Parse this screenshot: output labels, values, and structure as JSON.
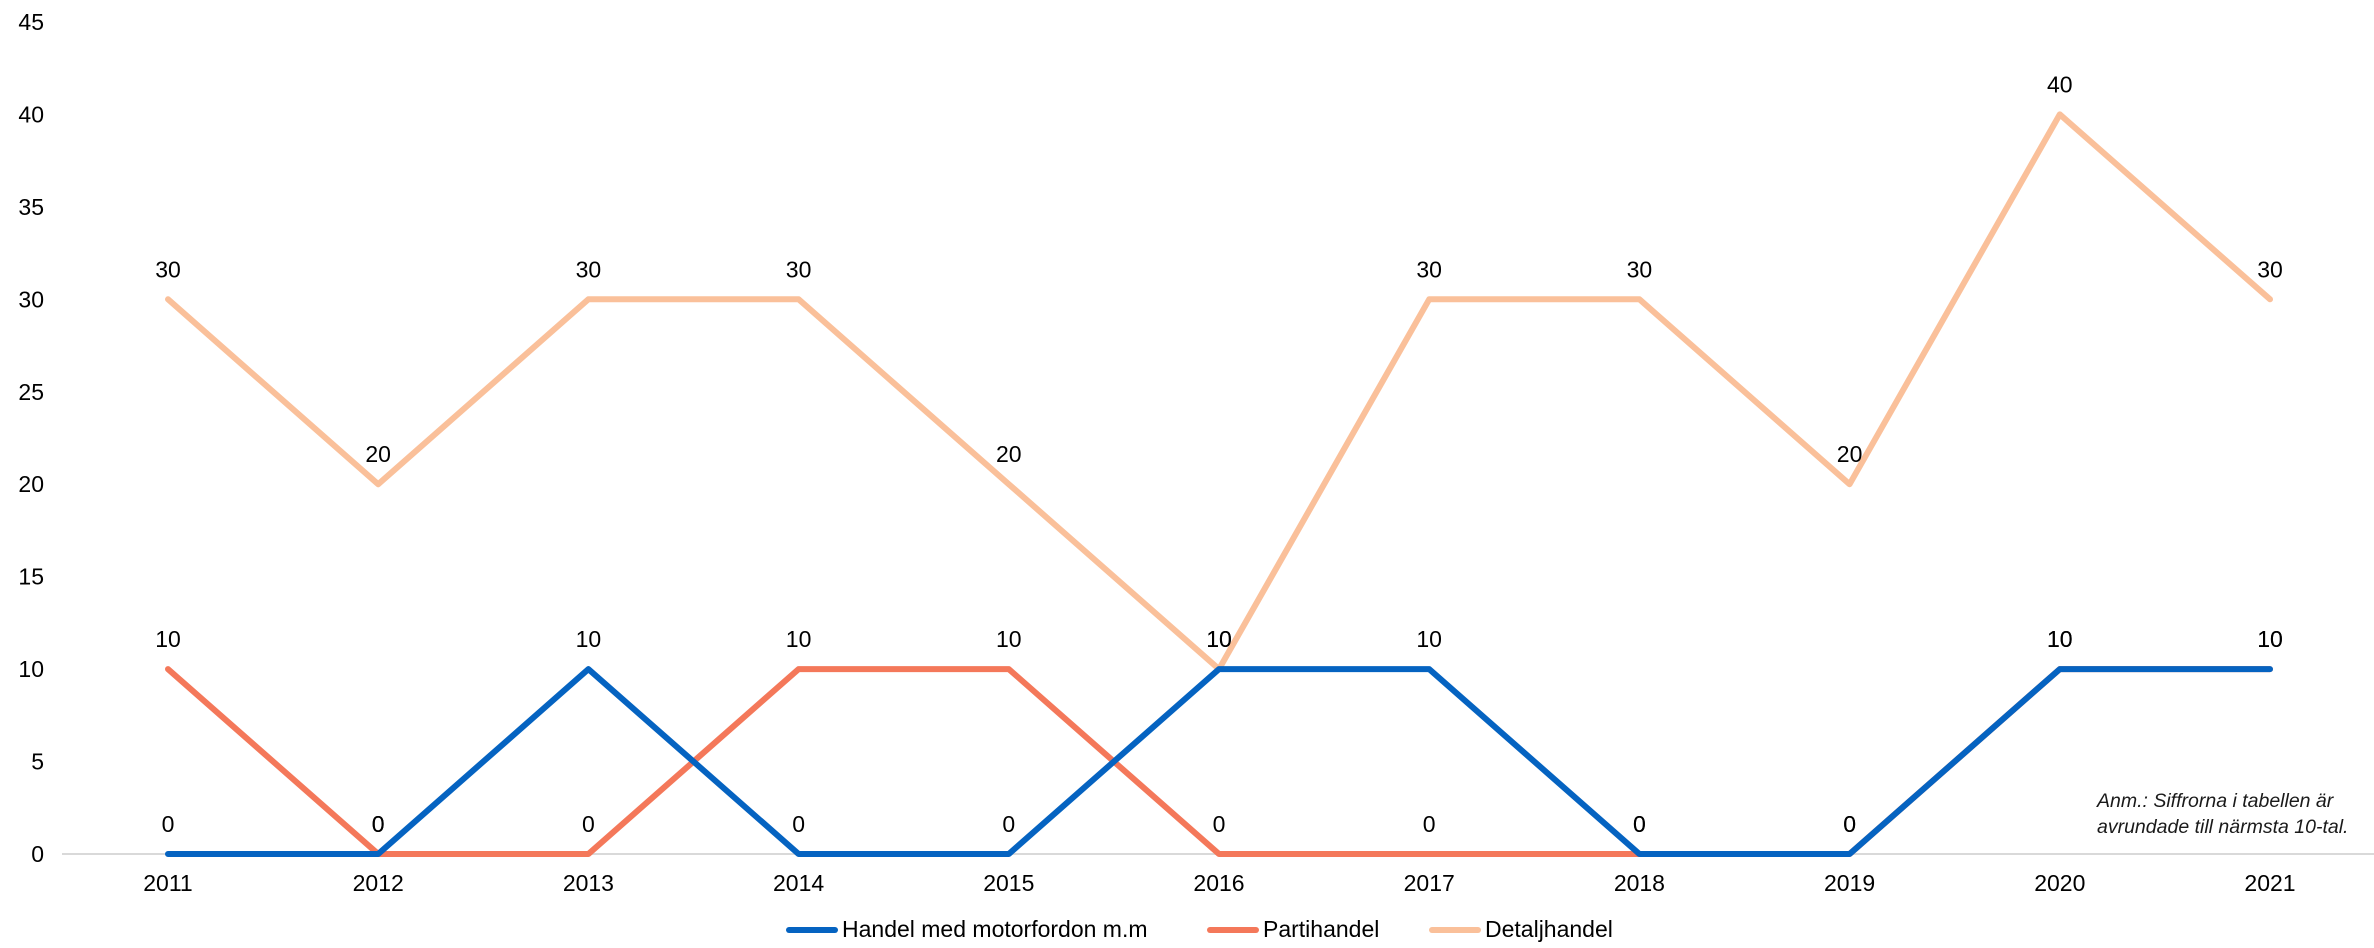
{
  "chart_data": {
    "type": "line",
    "categories": [
      "2011",
      "2012",
      "2013",
      "2014",
      "2015",
      "2016",
      "2017",
      "2018",
      "2019",
      "2020",
      "2021"
    ],
    "ylim": [
      0,
      45
    ],
    "yticks": [
      "0",
      "5",
      "10",
      "15",
      "20",
      "25",
      "30",
      "35",
      "40",
      "45"
    ],
    "grid": false,
    "legend_position": "bottom",
    "series": [
      {
        "name": "Handel med motorfordon m.m",
        "color": "#0563C1",
        "values": [
          0,
          0,
          10,
          0,
          0,
          10,
          10,
          0,
          0,
          10,
          10
        ]
      },
      {
        "name": "Partihandel",
        "color": "#F4785A",
        "values": [
          10,
          0,
          0,
          10,
          10,
          0,
          0,
          0,
          0,
          10,
          10
        ]
      },
      {
        "name": "Detaljhandel",
        "color": "#FAC09A",
        "values": [
          30,
          20,
          30,
          30,
          20,
          10,
          30,
          30,
          20,
          40,
          30
        ]
      }
    ],
    "note": [
      "Anm.: Siffrorna i tabellen är",
      "avrundade till närmsta 10-tal."
    ]
  }
}
